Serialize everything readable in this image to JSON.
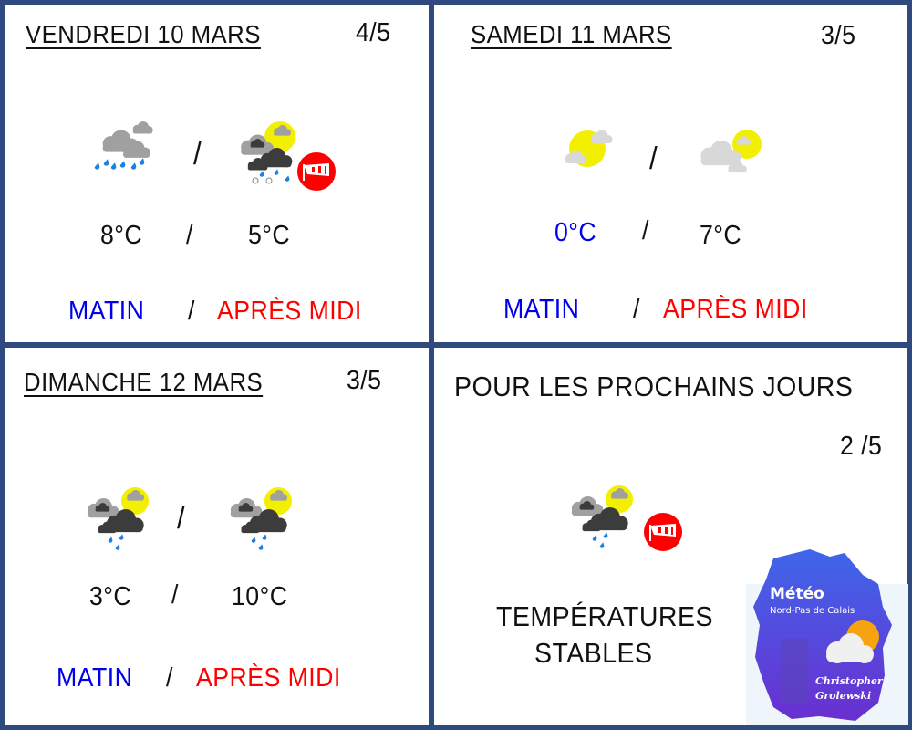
{
  "colors": {
    "frame": "#2e4a7e",
    "morning": "#0000ee",
    "afternoon": "#ff0000",
    "cold_temp": "#0000ee"
  },
  "days": [
    {
      "title": "VENDREDI 10 MARS",
      "rating": "4/5",
      "icons": [
        "rain-clouds-icon",
        "storm-hail-sun-icon"
      ],
      "wind_warning": true,
      "temp_morning": "8°C",
      "temp_afternoon": "5°C",
      "separator": "/",
      "label_morning": "MATIN",
      "label_afternoon": "APRÈS MIDI"
    },
    {
      "title": "SAMEDI 11 MARS",
      "rating": "3/5",
      "icons": [
        "sun-cloud-icon",
        "cloud-sun-icon"
      ],
      "wind_warning": false,
      "temp_morning": "0°C",
      "temp_afternoon": "7°C",
      "separator": "/",
      "label_morning": "MATIN",
      "label_afternoon": "APRÈS MIDI"
    },
    {
      "title": "DIMANCHE 12 MARS",
      "rating": "3/5",
      "icons": [
        "showers-sun-icon",
        "showers-sun-icon"
      ],
      "wind_warning": false,
      "temp_morning": "3°C",
      "temp_afternoon": "10°C",
      "separator": "/",
      "label_morning": "MATIN",
      "label_afternoon": "APRÈS MIDI"
    }
  ],
  "outlook": {
    "title": "POUR LES PROCHAINS JOURS",
    "rating": "2 /5",
    "icon": "showers-sun-icon",
    "wind_warning": true,
    "line1": "TEMPÉRATURES",
    "line2": "STABLES"
  },
  "logo": {
    "title": "Météo",
    "subtitle": "Nord-Pas de Calais",
    "author1": "Christopher",
    "author2": "Grolewski"
  }
}
